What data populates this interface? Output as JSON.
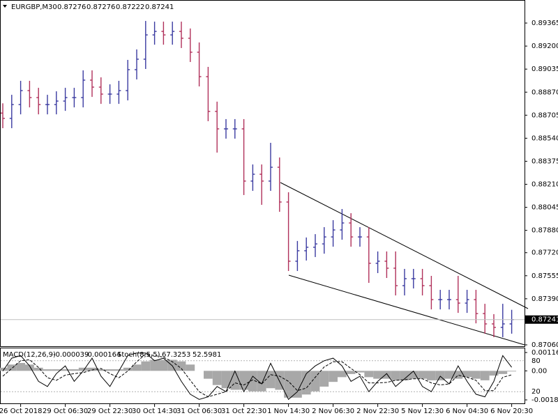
{
  "chart_data": [
    {
      "type": "ohlc",
      "header": {
        "symbol": "EURGBP,M30",
        "values": [
          0.87276,
          0.87276,
          0.87222,
          0.87241
        ]
      },
      "categories": [
        null,
        null,
        "26 Oct 2018",
        null,
        null,
        null,
        null,
        "29 Oct 06:30",
        null,
        null,
        null,
        null,
        "29 Oct 22:30",
        null,
        null,
        null,
        null,
        "30 Oct 14:30",
        null,
        null,
        null,
        null,
        "31 Oct 06:30",
        null,
        null,
        null,
        null,
        "31 Oct 22:30",
        null,
        null,
        null,
        null,
        "1 Nov 14:30",
        null,
        null,
        null,
        null,
        "2 Nov 06:30",
        null,
        null,
        null,
        null,
        "2 Nov 22:30",
        null,
        null,
        null,
        null,
        "5 Nov 12:30",
        null,
        null,
        null,
        null,
        "6 Nov 04:30",
        null,
        null,
        null,
        null,
        "6 Nov 20:30"
      ],
      "open": [
        0.8872,
        0.88682,
        0.88781,
        0.88881,
        0.88831,
        0.88781,
        0.88781,
        0.88806,
        0.88831,
        0.88831,
        0.88956,
        0.88906,
        0.88856,
        0.88856,
        0.88881,
        0.89031,
        0.89106,
        0.8928,
        0.89305,
        0.8928,
        0.89305,
        0.89256,
        0.89156,
        0.88981,
        0.88732,
        0.88607,
        0.88607,
        0.88607,
        0.88233,
        0.88282,
        0.88233,
        0.88332,
        0.88083,
        0.87659,
        0.87734,
        0.87759,
        0.87783,
        0.87833,
        0.87883,
        0.87933,
        0.87833,
        0.87833,
        0.87644,
        0.87659,
        0.87609,
        0.87484,
        0.87534,
        0.87534,
        0.87484,
        0.87384,
        0.87384,
        0.87384,
        0.87359,
        0.87384,
        0.87284,
        0.8721,
        0.87185,
        0.8721
      ],
      "high": [
        0.8879,
        0.88851,
        0.88951,
        0.88951,
        0.88901,
        0.88851,
        0.88876,
        0.88901,
        0.88901,
        0.89026,
        0.89026,
        0.88976,
        0.88926,
        0.88951,
        0.89101,
        0.89176,
        0.8938,
        0.89375,
        0.89375,
        0.89375,
        0.89375,
        0.89326,
        0.89226,
        0.89051,
        0.88802,
        0.88677,
        0.88677,
        0.88677,
        0.88352,
        0.88352,
        0.88507,
        0.88402,
        0.88153,
        0.87804,
        0.87829,
        0.87853,
        0.87903,
        0.87953,
        0.88033,
        0.88003,
        0.87903,
        0.87903,
        0.87729,
        0.87729,
        0.87729,
        0.87604,
        0.87604,
        0.87604,
        0.87554,
        0.87454,
        0.87454,
        0.87554,
        0.87454,
        0.87454,
        0.87354,
        0.8728,
        0.87354,
        0.87311
      ],
      "low": [
        0.88612,
        0.88612,
        0.88711,
        0.88761,
        0.88711,
        0.88711,
        0.88711,
        0.88736,
        0.88761,
        0.88761,
        0.88836,
        0.88786,
        0.88786,
        0.88786,
        0.88811,
        0.88961,
        0.89036,
        0.8921,
        0.8921,
        0.8921,
        0.89186,
        0.89086,
        0.88911,
        0.88662,
        0.88437,
        0.88537,
        0.88537,
        0.88133,
        0.88163,
        0.88063,
        0.88163,
        0.88013,
        0.87589,
        0.87589,
        0.87664,
        0.87689,
        0.87713,
        0.87763,
        0.87813,
        0.87763,
        0.87763,
        0.87504,
        0.87574,
        0.87539,
        0.87414,
        0.87414,
        0.87464,
        0.87414,
        0.87314,
        0.87314,
        0.87314,
        0.87289,
        0.87289,
        0.87214,
        0.8714,
        0.87115,
        0.87115,
        0.8714
      ],
      "close": [
        0.88682,
        0.88781,
        0.88881,
        0.88831,
        0.88781,
        0.88781,
        0.88806,
        0.88831,
        0.88831,
        0.88956,
        0.88906,
        0.88856,
        0.88856,
        0.88881,
        0.89031,
        0.89106,
        0.8928,
        0.89305,
        0.8928,
        0.89305,
        0.89256,
        0.89156,
        0.88981,
        0.88732,
        0.88607,
        0.88607,
        0.88607,
        0.88233,
        0.88282,
        0.88233,
        0.88332,
        0.88083,
        0.87659,
        0.87734,
        0.87759,
        0.87783,
        0.87833,
        0.87883,
        0.87933,
        0.87833,
        0.87833,
        0.87644,
        0.87659,
        0.87609,
        0.87484,
        0.87534,
        0.87534,
        0.87484,
        0.87384,
        0.87384,
        0.87384,
        0.87359,
        0.87384,
        0.87284,
        0.8721,
        0.87185,
        0.8721,
        0.87241
      ],
      "up_color": "#3a3aa0",
      "down_color": "#b0305a",
      "ylim": [
        0.8705,
        0.8952
      ],
      "yticks": [
        0.89365,
        {
          "value": 0.892,
          "label": "0.89200"
        },
        0.89035,
        {
          "value": 0.8887,
          "label": "0.88870"
        },
        0.88705,
        {
          "value": 0.8854,
          "label": "0.88540"
        },
        0.88375,
        {
          "value": 0.8821,
          "label": "0.88210"
        },
        0.88045,
        {
          "value": 0.8788,
          "label": "0.87880"
        },
        {
          "value": 0.8772,
          "label": "0.87720"
        },
        0.87555,
        {
          "value": 0.8739,
          "label": "0.87390"
        },
        {
          "value": 0.8706,
          "label": "0.87060"
        }
      ],
      "last_price": 0.87241,
      "grid": false
    },
    {
      "type": "indicator",
      "macd_label": "MACD(12,26,9)",
      "macd_values": [
        -3.9e-05,
        -0.000164
      ],
      "stoch_label": "Stoch(8,5,5)",
      "stoch_values": [
        67.3253,
        52.5981
      ],
      "histogram": [
        0.0002,
        0.0004,
        0.0005,
        0.0004,
        0.0002,
        0.0001,
        0.0001,
        0.0001,
        0.0001,
        0.0002,
        0.0002,
        0.0001,
        0.0001,
        0.0001,
        0.0002,
        0.0004,
        0.0006,
        0.0007,
        0.0007,
        0.0007,
        0.0006,
        0.0004,
        0,
        -0.0005,
        -0.0009,
        -0.0011,
        -0.0012,
        -0.0012,
        -0.0013,
        -0.0013,
        -0.0011,
        -0.0012,
        -0.0017,
        -0.0017,
        -0.0015,
        -0.0013,
        -0.001,
        -0.0007,
        -0.0004,
        -0.0002,
        -0.0001,
        -0.0004,
        -0.0005,
        -0.0005,
        -0.0006,
        -0.0006,
        -0.0005,
        -0.0005,
        -0.0006,
        -0.0006,
        -0.0005,
        -0.0005,
        -0.0004,
        -0.0005,
        -0.0006,
        -0.0003,
        -0.0002,
        -3.9e-05
      ],
      "histogram_color": "#a8a8a8",
      "stoch_main": [
        60,
        85,
        90,
        70,
        40,
        30,
        55,
        70,
        40,
        60,
        85,
        50,
        30,
        60,
        90,
        95,
        95,
        80,
        85,
        70,
        40,
        15,
        5,
        10,
        30,
        20,
        60,
        20,
        50,
        35,
        75,
        40,
        5,
        20,
        55,
        70,
        80,
        85,
        70,
        40,
        50,
        20,
        40,
        55,
        30,
        45,
        60,
        30,
        20,
        50,
        35,
        70,
        40,
        15,
        10,
        40,
        90,
        67.3253
      ],
      "stoch_signal": [
        50,
        65,
        80,
        82,
        67,
        47,
        42,
        52,
        55,
        57,
        62,
        65,
        55,
        47,
        60,
        78,
        93,
        90,
        87,
        78,
        65,
        42,
        20,
        10,
        15,
        20,
        37,
        33,
        43,
        35,
        53,
        50,
        40,
        22,
        27,
        48,
        68,
        78,
        78,
        65,
        53,
        37,
        37,
        38,
        42,
        43,
        45,
        45,
        37,
        33,
        35,
        52,
        48,
        42,
        22,
        22,
        48,
        52.5981
      ],
      "ylim": [
        -0.001841,
        0.001163
      ],
      "yticks": [
        0.001163,
        {
          "value": 0,
          "label": "0.00"
        },
        -0.001841
      ],
      "y2lim": [
        0,
        100
      ],
      "y2ticks": [
        80,
        20
      ]
    }
  ]
}
